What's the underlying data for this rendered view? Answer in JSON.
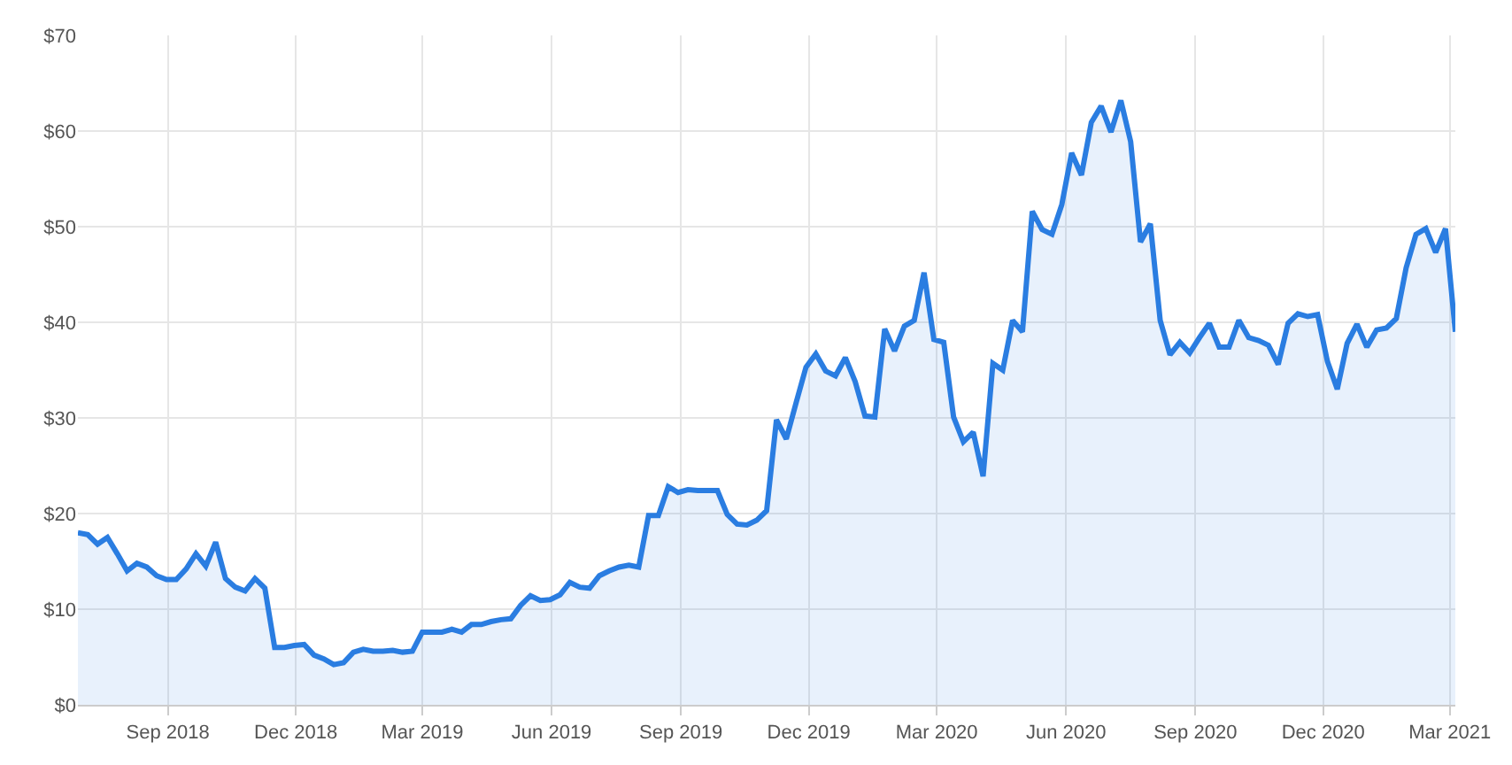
{
  "chart_data": {
    "type": "area",
    "x": [
      "2018-06-29",
      "2018-07-06",
      "2018-07-13",
      "2018-07-20",
      "2018-07-27",
      "2018-08-03",
      "2018-08-10",
      "2018-08-17",
      "2018-08-24",
      "2018-08-31",
      "2018-09-07",
      "2018-09-14",
      "2018-09-21",
      "2018-09-28",
      "2018-10-05",
      "2018-10-12",
      "2018-10-19",
      "2018-10-26",
      "2018-11-02",
      "2018-11-09",
      "2018-11-16",
      "2018-11-23",
      "2018-11-30",
      "2018-12-07",
      "2018-12-14",
      "2018-12-21",
      "2018-12-28",
      "2019-01-04",
      "2019-01-11",
      "2019-01-18",
      "2019-01-25",
      "2019-02-01",
      "2019-02-08",
      "2019-02-15",
      "2019-02-22",
      "2019-03-01",
      "2019-03-08",
      "2019-03-15",
      "2019-03-22",
      "2019-03-29",
      "2019-04-05",
      "2019-04-12",
      "2019-04-19",
      "2019-04-26",
      "2019-05-03",
      "2019-05-10",
      "2019-05-17",
      "2019-05-24",
      "2019-05-31",
      "2019-06-07",
      "2019-06-14",
      "2019-06-21",
      "2019-06-28",
      "2019-07-05",
      "2019-07-12",
      "2019-07-19",
      "2019-07-26",
      "2019-08-02",
      "2019-08-09",
      "2019-08-16",
      "2019-08-23",
      "2019-08-30",
      "2019-09-06",
      "2019-09-13",
      "2019-09-20",
      "2019-09-27",
      "2019-10-04",
      "2019-10-11",
      "2019-10-18",
      "2019-10-25",
      "2019-11-01",
      "2019-11-08",
      "2019-11-15",
      "2019-11-22",
      "2019-11-29",
      "2019-12-06",
      "2019-12-13",
      "2019-12-20",
      "2019-12-27",
      "2020-01-03",
      "2020-01-10",
      "2020-01-17",
      "2020-01-24",
      "2020-01-31",
      "2020-02-07",
      "2020-02-14",
      "2020-02-21",
      "2020-02-28",
      "2020-03-06",
      "2020-03-13",
      "2020-03-20",
      "2020-03-27",
      "2020-04-03",
      "2020-04-10",
      "2020-04-17",
      "2020-04-24",
      "2020-05-01",
      "2020-05-08",
      "2020-05-15",
      "2020-05-22",
      "2020-05-29",
      "2020-06-05",
      "2020-06-12",
      "2020-06-19",
      "2020-06-26",
      "2020-07-03",
      "2020-07-10",
      "2020-07-17",
      "2020-07-24",
      "2020-07-31",
      "2020-08-07",
      "2020-08-14",
      "2020-08-21",
      "2020-08-28",
      "2020-09-04",
      "2020-09-11",
      "2020-09-18",
      "2020-09-25",
      "2020-10-02",
      "2020-10-09",
      "2020-10-16",
      "2020-10-23",
      "2020-10-30",
      "2020-11-06",
      "2020-11-13",
      "2020-11-20",
      "2020-11-27",
      "2020-12-04",
      "2020-12-11",
      "2020-12-18",
      "2020-12-25",
      "2021-01-01",
      "2021-01-08",
      "2021-01-15",
      "2021-01-22",
      "2021-01-29",
      "2021-02-05",
      "2021-02-12",
      "2021-02-19",
      "2021-02-26",
      "2021-03-05"
    ],
    "series": [
      {
        "color": "#2a7de1",
        "values": [
          18.0,
          17.8,
          16.8,
          17.5,
          15.8,
          14.0,
          14.8,
          14.4,
          13.5,
          13.1,
          13.1,
          14.2,
          15.8,
          14.5,
          17.0,
          13.2,
          12.3,
          11.9,
          13.2,
          12.2,
          6.0,
          6.0,
          6.2,
          6.3,
          5.2,
          4.8,
          4.2,
          4.4,
          5.5,
          5.8,
          5.6,
          5.6,
          5.7,
          5.5,
          5.6,
          7.6,
          7.6,
          7.6,
          7.9,
          7.6,
          8.4,
          8.4,
          8.7,
          8.9,
          9.0,
          10.4,
          11.4,
          10.9,
          11.0,
          11.5,
          12.8,
          12.3,
          12.2,
          13.5,
          14.0,
          14.4,
          14.6,
          14.4,
          19.8,
          19.8,
          22.8,
          22.2,
          22.5,
          22.4,
          22.4,
          22.4,
          19.9,
          18.9,
          18.8,
          19.3,
          20.3,
          29.8,
          27.8,
          31.6,
          35.3,
          36.7,
          34.9,
          34.4,
          36.3,
          33.8,
          30.2,
          30.1,
          39.3,
          37.0,
          39.6,
          40.2,
          45.2,
          38.2,
          37.9,
          30.1,
          27.5,
          28.5,
          23.9,
          35.7,
          35.0,
          40.2,
          39.0,
          51.6,
          49.7,
          49.2,
          52.3,
          57.7,
          55.4,
          60.9,
          62.6,
          59.9,
          63.2,
          58.9,
          48.4,
          50.3,
          40.2,
          36.6,
          37.9,
          36.8,
          38.4,
          39.9,
          37.4,
          37.4,
          40.2,
          38.4,
          38.1,
          37.6,
          35.6,
          39.9,
          40.9,
          40.6,
          40.8,
          35.9,
          33.0,
          37.8,
          39.8,
          37.4,
          39.2,
          39.4,
          40.4,
          45.7,
          49.2,
          49.8,
          47.3,
          49.8,
          39.0
        ]
      }
    ],
    "xlim": [
      "2018-06-29",
      "2021-03-05"
    ],
    "xticks": [
      {
        "value": "2018-09-01",
        "label": "Sep 2018"
      },
      {
        "value": "2018-12-01",
        "label": "Dec 2018"
      },
      {
        "value": "2019-03-01",
        "label": "Mar 2019"
      },
      {
        "value": "2019-06-01",
        "label": "Jun 2019"
      },
      {
        "value": "2019-09-01",
        "label": "Sep 2019"
      },
      {
        "value": "2019-12-01",
        "label": "Dec 2019"
      },
      {
        "value": "2020-03-01",
        "label": "Mar 2020"
      },
      {
        "value": "2020-06-01",
        "label": "Jun 2020"
      },
      {
        "value": "2020-09-01",
        "label": "Sep 2020"
      },
      {
        "value": "2020-12-01",
        "label": "Dec 2020"
      },
      {
        "value": "2021-03-01",
        "label": "Mar 2021"
      }
    ],
    "ylim": [
      0,
      70
    ],
    "yticks": [
      {
        "value": 0,
        "label": "$0"
      },
      {
        "value": 10,
        "label": "$10"
      },
      {
        "value": 20,
        "label": "$20"
      },
      {
        "value": 30,
        "label": "$30"
      },
      {
        "value": 40,
        "label": "$40"
      },
      {
        "value": 50,
        "label": "$50"
      },
      {
        "value": 60,
        "label": "$60"
      },
      {
        "value": 70,
        "label": "$70"
      }
    ],
    "grid": true,
    "line_style": "solid"
  }
}
